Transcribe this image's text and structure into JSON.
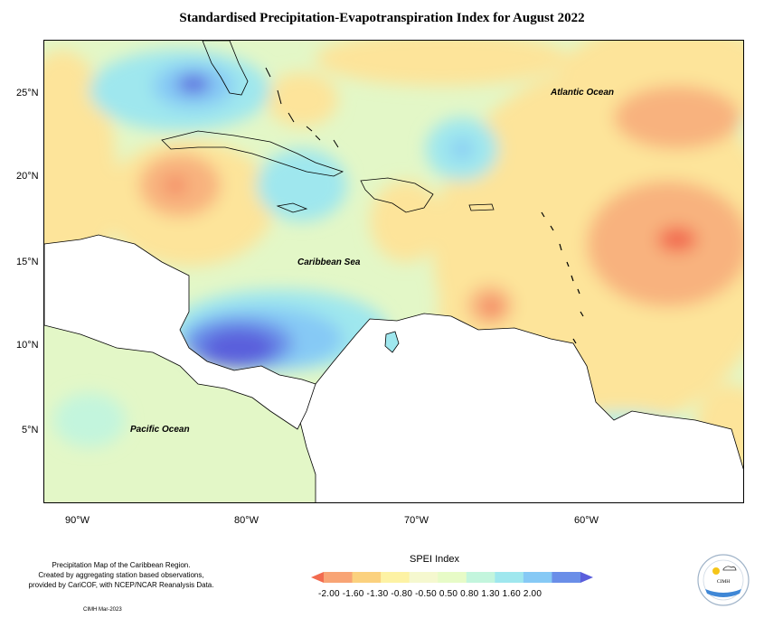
{
  "title": "Standardised Precipitation-Evapotranspiration Index for August 2022",
  "map": {
    "lat_ticks": [
      "25°N",
      "20°N",
      "15°N",
      "10°N",
      "5°N"
    ],
    "lon_ticks": [
      "90°W",
      "80°W",
      "70°W",
      "60°W"
    ],
    "labels": {
      "atlantic": "Atlantic Ocean",
      "caribbean": "Caribbean Sea",
      "pacific": "Pacific Ocean"
    }
  },
  "legend": {
    "title": "SPEI Index",
    "values": "-2.00 -1.60 -1.30 -0.80 -0.50  0.50  0.80  1.30  1.60  2.00",
    "colors": [
      "#f26b4f",
      "#f8a475",
      "#fbd17e",
      "#fdf2a4",
      "#f5f8cf",
      "#e7fbc7",
      "#c3f5dd",
      "#9fe7ee",
      "#86c9f5",
      "#6a8ee8",
      "#5a5edc"
    ]
  },
  "footnote": {
    "line1": "Precipitation Map of the Caribbean Region.",
    "line2": "Created by aggregating station based observations,",
    "line3": "provided by CariCOF, with NCEP/NCAR Reanalysis Data."
  },
  "credit": "CIMH Mar-2023",
  "logo_text": "CIMH"
}
